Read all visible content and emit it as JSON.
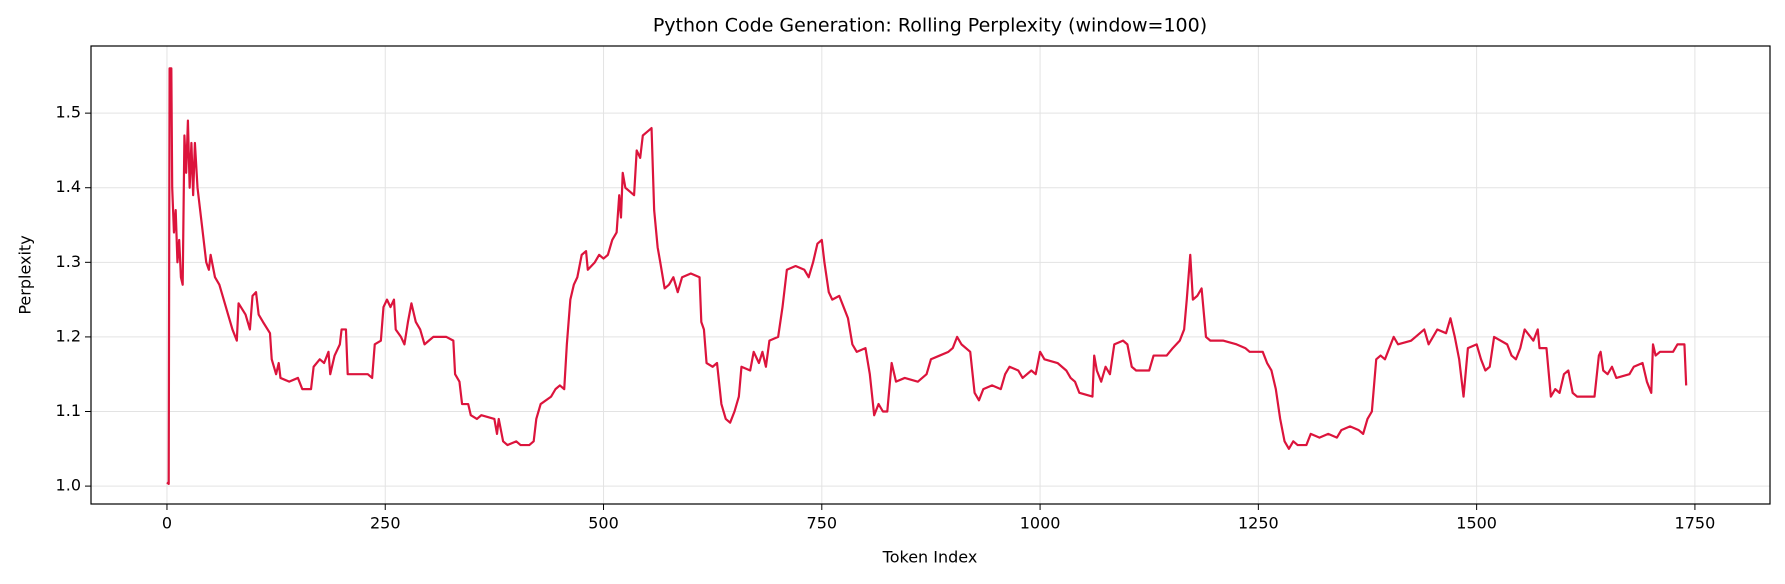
{
  "chart_data": {
    "type": "line",
    "title": "Python Code Generation: Rolling Perplexity (window=100)",
    "x_label": "Token Index",
    "y_label": "Perplexity",
    "color": "#dc143c",
    "grid": true,
    "xlim": [
      -87,
      1836
    ],
    "ylim": [
      0.976,
      1.59
    ],
    "xticks": [
      0,
      250,
      500,
      750,
      1000,
      1250,
      1500,
      1750
    ],
    "yticks": [
      {
        "value": 1,
        "label": "1.0"
      },
      1.1,
      1.2,
      1.3,
      1.4,
      1.5
    ],
    "x": [
      0,
      2,
      3,
      5,
      6,
      8,
      10,
      12,
      14,
      16,
      18,
      20,
      22,
      24,
      26,
      28,
      30,
      32,
      35,
      40,
      45,
      48,
      50,
      55,
      60,
      65,
      70,
      75,
      80,
      82,
      90,
      95,
      98,
      102,
      105,
      110,
      118,
      120,
      125,
      128,
      130,
      140,
      150,
      155,
      165,
      168,
      175,
      180,
      185,
      187,
      192,
      198,
      200,
      205,
      207,
      215,
      230,
      235,
      238,
      245,
      248,
      252,
      256,
      260,
      262,
      268,
      272,
      276,
      280,
      285,
      290,
      295,
      300,
      305,
      320,
      328,
      330,
      335,
      338,
      345,
      348,
      355,
      360,
      375,
      378,
      380,
      385,
      390,
      400,
      405,
      415,
      420,
      423,
      428,
      440,
      445,
      450,
      455,
      458,
      462,
      466,
      470,
      475,
      480,
      482,
      490,
      495,
      500,
      505,
      510,
      515,
      518,
      520,
      522,
      525,
      530,
      535,
      538,
      542,
      545,
      550,
      555,
      558,
      562,
      565,
      570,
      575,
      580,
      585,
      590,
      600,
      610,
      612,
      615,
      618,
      625,
      630,
      635,
      640,
      645,
      650,
      655,
      658,
      668,
      672,
      678,
      682,
      686,
      690,
      700,
      705,
      710,
      720,
      730,
      735,
      740,
      745,
      750,
      753,
      758,
      762,
      770,
      775,
      780,
      785,
      790,
      800,
      805,
      810,
      815,
      820,
      825,
      830,
      835,
      845,
      860,
      870,
      875,
      885,
      895,
      900,
      905,
      910,
      920,
      925,
      930,
      935,
      945,
      955,
      960,
      965,
      975,
      980,
      990,
      995,
      1000,
      1005,
      1020,
      1030,
      1035,
      1040,
      1045,
      1060,
      1062,
      1065,
      1070,
      1075,
      1080,
      1085,
      1095,
      1100,
      1105,
      1110,
      1125,
      1130,
      1145,
      1152,
      1160,
      1165,
      1168,
      1172,
      1175,
      1180,
      1185,
      1190,
      1195,
      1210,
      1225,
      1235,
      1240,
      1255,
      1260,
      1265,
      1270,
      1275,
      1280,
      1285,
      1290,
      1295,
      1305,
      1310,
      1320,
      1330,
      1340,
      1345,
      1355,
      1365,
      1370,
      1375,
      1380,
      1385,
      1390,
      1395,
      1405,
      1410,
      1425,
      1430,
      1440,
      1445,
      1455,
      1465,
      1470,
      1475,
      1480,
      1485,
      1490,
      1500,
      1505,
      1510,
      1515,
      1520,
      1535,
      1540,
      1545,
      1550,
      1555,
      1565,
      1570,
      1572,
      1580,
      1585,
      1590,
      1595,
      1600,
      1605,
      1610,
      1615,
      1635,
      1640,
      1642,
      1645,
      1650,
      1655,
      1660,
      1675,
      1680,
      1690,
      1695,
      1700,
      1702,
      1705,
      1710,
      1725,
      1730,
      1738,
      1740
    ],
    "values": [
      1.005,
      1.003,
      1.56,
      1.56,
      1.4,
      1.34,
      1.37,
      1.3,
      1.33,
      1.28,
      1.27,
      1.47,
      1.42,
      1.49,
      1.4,
      1.46,
      1.39,
      1.46,
      1.4,
      1.35,
      1.3,
      1.29,
      1.31,
      1.28,
      1.27,
      1.25,
      1.23,
      1.21,
      1.195,
      1.245,
      1.23,
      1.21,
      1.255,
      1.26,
      1.23,
      1.22,
      1.205,
      1.17,
      1.15,
      1.165,
      1.145,
      1.14,
      1.145,
      1.13,
      1.13,
      1.16,
      1.17,
      1.165,
      1.18,
      1.15,
      1.175,
      1.19,
      1.21,
      1.21,
      1.15,
      1.15,
      1.15,
      1.145,
      1.19,
      1.195,
      1.24,
      1.25,
      1.24,
      1.25,
      1.21,
      1.2,
      1.19,
      1.22,
      1.245,
      1.22,
      1.21,
      1.19,
      1.195,
      1.2,
      1.2,
      1.195,
      1.15,
      1.14,
      1.11,
      1.11,
      1.095,
      1.09,
      1.095,
      1.09,
      1.07,
      1.09,
      1.06,
      1.055,
      1.06,
      1.055,
      1.055,
      1.06,
      1.09,
      1.11,
      1.12,
      1.13,
      1.135,
      1.13,
      1.19,
      1.25,
      1.27,
      1.28,
      1.31,
      1.315,
      1.29,
      1.3,
      1.31,
      1.305,
      1.31,
      1.33,
      1.34,
      1.39,
      1.36,
      1.42,
      1.4,
      1.395,
      1.39,
      1.45,
      1.44,
      1.47,
      1.475,
      1.48,
      1.37,
      1.32,
      1.3,
      1.265,
      1.27,
      1.28,
      1.26,
      1.28,
      1.285,
      1.28,
      1.22,
      1.21,
      1.165,
      1.16,
      1.165,
      1.11,
      1.09,
      1.085,
      1.1,
      1.12,
      1.16,
      1.155,
      1.18,
      1.165,
      1.18,
      1.16,
      1.195,
      1.2,
      1.24,
      1.29,
      1.295,
      1.29,
      1.28,
      1.3,
      1.325,
      1.33,
      1.3,
      1.26,
      1.25,
      1.255,
      1.24,
      1.225,
      1.19,
      1.18,
      1.185,
      1.15,
      1.095,
      1.11,
      1.1,
      1.1,
      1.165,
      1.14,
      1.145,
      1.14,
      1.15,
      1.17,
      1.175,
      1.18,
      1.185,
      1.2,
      1.19,
      1.18,
      1.125,
      1.115,
      1.13,
      1.135,
      1.13,
      1.15,
      1.16,
      1.155,
      1.145,
      1.155,
      1.15,
      1.18,
      1.17,
      1.165,
      1.155,
      1.145,
      1.14,
      1.125,
      1.12,
      1.175,
      1.155,
      1.14,
      1.16,
      1.15,
      1.19,
      1.195,
      1.19,
      1.16,
      1.155,
      1.155,
      1.175,
      1.175,
      1.185,
      1.195,
      1.21,
      1.25,
      1.31,
      1.25,
      1.255,
      1.265,
      1.2,
      1.195,
      1.195,
      1.19,
      1.185,
      1.18,
      1.18,
      1.165,
      1.155,
      1.13,
      1.09,
      1.06,
      1.05,
      1.06,
      1.055,
      1.055,
      1.07,
      1.065,
      1.07,
      1.065,
      1.075,
      1.08,
      1.075,
      1.07,
      1.09,
      1.1,
      1.17,
      1.175,
      1.17,
      1.2,
      1.19,
      1.195,
      1.2,
      1.21,
      1.19,
      1.21,
      1.205,
      1.225,
      1.2,
      1.17,
      1.12,
      1.185,
      1.19,
      1.17,
      1.155,
      1.16,
      1.2,
      1.19,
      1.175,
      1.17,
      1.185,
      1.21,
      1.195,
      1.21,
      1.185,
      1.185,
      1.12,
      1.13,
      1.125,
      1.15,
      1.155,
      1.125,
      1.12,
      1.12,
      1.175,
      1.18,
      1.155,
      1.15,
      1.16,
      1.145,
      1.15,
      1.16,
      1.165,
      1.14,
      1.125,
      1.19,
      1.175,
      1.18,
      1.18,
      1.19,
      1.19,
      1.135
    ]
  }
}
